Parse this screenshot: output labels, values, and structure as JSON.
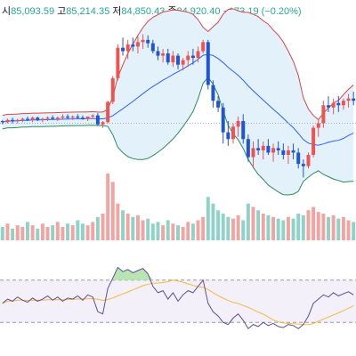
{
  "header": {
    "open_label": "시",
    "open": "85,093.59",
    "high_label": "고",
    "high": "85,214.35",
    "low_label": "저",
    "low": "84,850.43",
    "close_label": "종",
    "close": "84,920.40",
    "change": "−173.19 (−0.20%)"
  },
  "colors": {
    "up": "#ef5350",
    "down": "#1e55d6",
    "vol_up": "#f2a4a2",
    "vol_down": "#8fd3c8",
    "bb_upper": "#d64545",
    "bb_lower": "#2e8b57",
    "bb_mid": "#2962ff",
    "bb_fill": "#e3f1fb",
    "rsi": "#5b4d9a",
    "rsi_signal": "#f5b942",
    "price_line": "#b0b0b0"
  },
  "chart_data": {
    "type": "candlestick",
    "candles": [
      [
        100,
        101,
        97,
        99
      ],
      [
        99,
        102,
        98,
        101
      ],
      [
        101,
        103,
        98,
        100
      ],
      [
        100,
        102,
        98,
        101
      ],
      [
        101,
        103,
        99,
        102
      ],
      [
        102,
        104,
        100,
        101
      ],
      [
        101,
        104,
        99,
        103
      ],
      [
        103,
        104,
        100,
        101
      ],
      [
        101,
        103,
        99,
        102
      ],
      [
        102,
        104,
        100,
        103
      ],
      [
        103,
        105,
        101,
        102
      ],
      [
        102,
        104,
        100,
        103
      ],
      [
        103,
        106,
        101,
        104
      ],
      [
        104,
        106,
        102,
        103
      ],
      [
        103,
        105,
        101,
        104
      ],
      [
        104,
        106,
        102,
        103
      ],
      [
        103,
        105,
        101,
        102
      ],
      [
        102,
        104,
        100,
        104
      ],
      [
        104,
        106,
        102,
        105
      ],
      [
        105,
        107,
        96,
        97
      ],
      [
        97,
        100,
        94,
        99
      ],
      [
        99,
        118,
        98,
        117
      ],
      [
        117,
        140,
        115,
        138
      ],
      [
        138,
        168,
        136,
        165
      ],
      [
        165,
        174,
        158,
        162
      ],
      [
        162,
        172,
        155,
        168
      ],
      [
        168,
        174,
        162,
        166
      ],
      [
        166,
        175,
        160,
        170
      ],
      [
        170,
        177,
        164,
        172
      ],
      [
        172,
        176,
        165,
        169
      ],
      [
        169,
        172,
        160,
        162
      ],
      [
        162,
        166,
        154,
        158
      ],
      [
        158,
        164,
        152,
        160
      ],
      [
        160,
        164,
        150,
        152
      ],
      [
        152,
        162,
        148,
        158
      ],
      [
        158,
        160,
        146,
        150
      ],
      [
        150,
        156,
        145,
        154
      ],
      [
        154,
        162,
        148,
        158
      ],
      [
        158,
        164,
        150,
        156
      ],
      [
        156,
        166,
        152,
        162
      ],
      [
        162,
        172,
        160,
        170
      ],
      [
        170,
        172,
        128,
        132
      ],
      [
        132,
        136,
        112,
        118
      ],
      [
        118,
        122,
        108,
        112
      ],
      [
        112,
        116,
        80,
        90
      ],
      [
        90,
        100,
        78,
        84
      ],
      [
        84,
        98,
        80,
        95
      ],
      [
        95,
        104,
        86,
        100
      ],
      [
        100,
        106,
        80,
        84
      ],
      [
        84,
        88,
        64,
        68
      ],
      [
        68,
        82,
        58,
        76
      ],
      [
        76,
        84,
        70,
        74
      ],
      [
        74,
        82,
        66,
        78
      ],
      [
        78,
        84,
        70,
        72
      ],
      [
        72,
        80,
        64,
        76
      ],
      [
        76,
        82,
        70,
        74
      ],
      [
        74,
        80,
        66,
        70
      ],
      [
        70,
        78,
        62,
        74
      ],
      [
        74,
        80,
        66,
        72
      ],
      [
        72,
        76,
        58,
        62
      ],
      [
        62,
        66,
        50,
        60
      ],
      [
        60,
        72,
        58,
        70
      ],
      [
        70,
        96,
        68,
        94
      ],
      [
        94,
        102,
        86,
        98
      ],
      [
        98,
        118,
        94,
        114
      ],
      [
        114,
        122,
        108,
        112
      ],
      [
        112,
        120,
        106,
        116
      ],
      [
        116,
        122,
        108,
        114
      ],
      [
        114,
        120,
        110,
        118
      ],
      [
        118,
        124,
        112,
        120
      ],
      [
        120,
        126,
        114,
        118
      ]
    ],
    "volume": [
      8,
      10,
      7,
      9,
      8,
      11,
      9,
      7,
      10,
      8,
      9,
      11,
      8,
      10,
      9,
      12,
      10,
      9,
      11,
      14,
      16,
      40,
      35,
      22,
      18,
      16,
      14,
      15,
      12,
      13,
      10,
      11,
      9,
      12,
      10,
      9,
      8,
      11,
      10,
      12,
      14,
      26,
      22,
      18,
      16,
      14,
      13,
      15,
      12,
      22,
      20,
      18,
      16,
      15,
      14,
      13,
      12,
      14,
      13,
      16,
      15,
      18,
      20,
      17,
      16,
      14,
      15,
      13,
      14,
      12,
      11
    ],
    "rsi": [
      48,
      52,
      50,
      54,
      51,
      49,
      53,
      50,
      52,
      55,
      51,
      54,
      50,
      53,
      52,
      55,
      51,
      56,
      54,
      40,
      38,
      62,
      72,
      82,
      78,
      80,
      77,
      79,
      81,
      76,
      64,
      58,
      60,
      52,
      58,
      50,
      56,
      60,
      58,
      64,
      70,
      48,
      40,
      36,
      30,
      28,
      34,
      38,
      32,
      24,
      28,
      26,
      30,
      27,
      29,
      26,
      25,
      28,
      27,
      24,
      28,
      36,
      48,
      52,
      56,
      54,
      58,
      55,
      57,
      59,
      56
    ],
    "bb_ylim": [
      40,
      190
    ],
    "rsi_ylim": [
      15,
      95
    ]
  }
}
